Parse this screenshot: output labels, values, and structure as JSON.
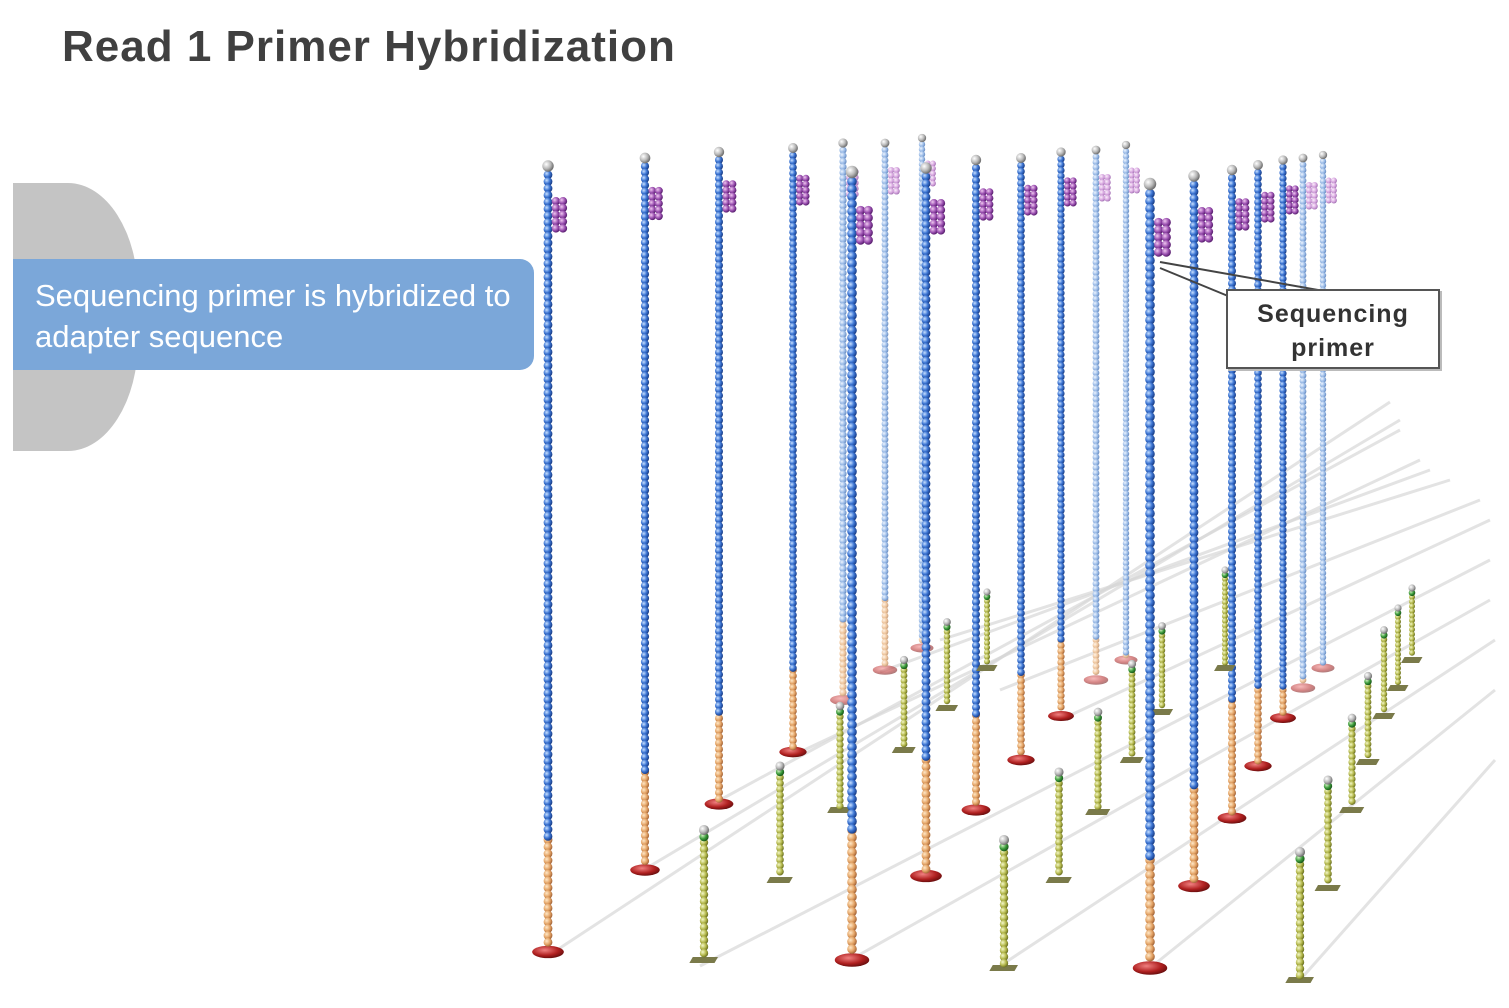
{
  "title": "Read 1 Primer Hybridization",
  "caption": "Sequencing primer is hybridized to adapter sequence",
  "callout": "Sequencing primer",
  "colors": {
    "template_strand": "#3c6fcc",
    "adapter_segment": "#e0a060",
    "primer": "#9a4fb0",
    "short_strand": "#a8b040",
    "anchor": "#b02020",
    "caption_bg": "#7ba7d9"
  }
}
